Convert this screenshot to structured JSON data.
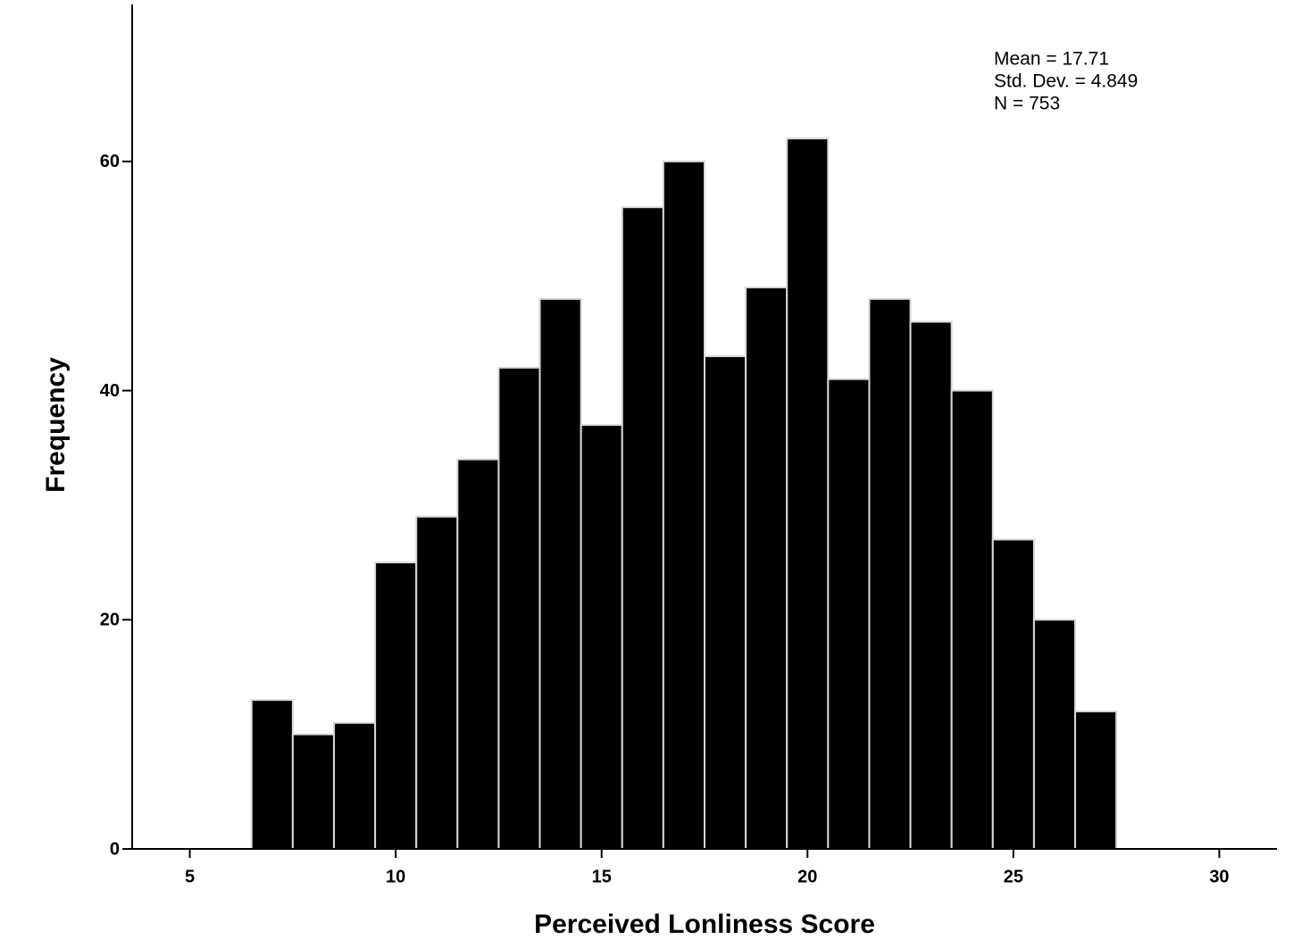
{
  "chart_data": {
    "type": "histogram",
    "x_label": "Perceived Lonliness Score",
    "y_label": "Frequency",
    "annotations": [
      "Mean = 17.71",
      "Std. Dev. = 4.849",
      "N = 753"
    ],
    "bins": [
      6.5,
      7.5,
      8.5,
      9.5,
      10.5,
      11.5,
      12.5,
      13.5,
      14.5,
      15.5,
      16.5,
      17.5,
      18.5,
      19.5,
      20.5,
      21.5,
      22.5,
      23.5,
      24.5,
      25.5,
      26.5,
      27.5
    ],
    "values": [
      13,
      10,
      11,
      25,
      29,
      34,
      42,
      48,
      37,
      56,
      60,
      43,
      49,
      62,
      41,
      48,
      46,
      40,
      27,
      20,
      12
    ],
    "color": "#000000",
    "xlim": [
      3.6,
      31.4
    ],
    "xticks": [
      5,
      10,
      15,
      20,
      25,
      30
    ],
    "ylim": [
      0,
      73.7
    ],
    "yticks": [
      0,
      20,
      40,
      60
    ]
  }
}
